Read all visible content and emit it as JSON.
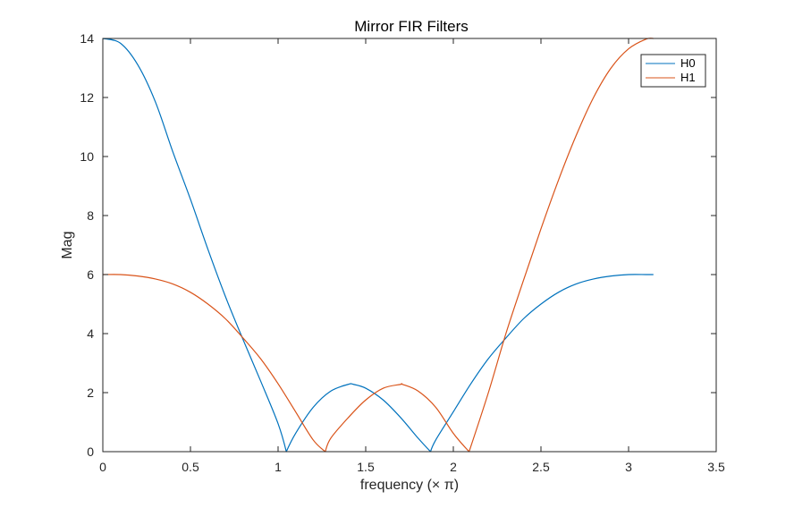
{
  "chart_data": {
    "type": "line",
    "title": "Mirror FIR Filters",
    "xlabel": "frequency (× π)",
    "ylabel": "Mag",
    "xlim": [
      0,
      3.5
    ],
    "ylim": [
      0,
      14
    ],
    "x_ticks": [
      "0",
      "0.5",
      "1",
      "1.5",
      "2",
      "2.5",
      "3",
      "3.5"
    ],
    "y_ticks": [
      "0",
      "2",
      "4",
      "6",
      "8",
      "10",
      "12",
      "14"
    ],
    "grid": false,
    "box": true,
    "legend_position": "top-right",
    "series": [
      {
        "name": "H0",
        "color": "#0072BD",
        "x": [
          0,
          0.1,
          0.2,
          0.3,
          0.4,
          0.5,
          0.6,
          0.7,
          0.8,
          0.9,
          1.0,
          1.047,
          1.1,
          1.2,
          1.3,
          1.4,
          1.43,
          1.5,
          1.6,
          1.7,
          1.8,
          1.87,
          1.9,
          2.0,
          2.1,
          2.2,
          2.3,
          2.4,
          2.5,
          2.6,
          2.7,
          2.8,
          2.9,
          3.0,
          3.1,
          3.1416
        ],
        "y": [
          14.0,
          13.84,
          13.1,
          11.85,
          10.15,
          8.55,
          6.85,
          5.25,
          3.8,
          2.4,
          0.95,
          0.0,
          0.62,
          1.5,
          2.05,
          2.28,
          2.28,
          2.15,
          1.75,
          1.15,
          0.45,
          0.0,
          0.4,
          1.35,
          2.3,
          3.15,
          3.85,
          4.5,
          5.0,
          5.4,
          5.68,
          5.85,
          5.95,
          6.0,
          6.0,
          6.0
        ]
      },
      {
        "name": "H1",
        "color": "#D95319",
        "x": [
          0,
          0.1,
          0.2,
          0.3,
          0.4,
          0.5,
          0.6,
          0.7,
          0.8,
          0.9,
          1.0,
          1.1,
          1.2,
          1.27,
          1.3,
          1.4,
          1.5,
          1.6,
          1.7,
          1.71,
          1.8,
          1.9,
          2.0,
          2.09,
          2.2,
          2.3,
          2.4,
          2.5,
          2.6,
          2.7,
          2.8,
          2.9,
          3.0,
          3.1,
          3.1416
        ],
        "y": [
          6.0,
          6.0,
          5.95,
          5.85,
          5.68,
          5.4,
          5.0,
          4.5,
          3.85,
          3.15,
          2.3,
          1.35,
          0.4,
          0.0,
          0.45,
          1.15,
          1.75,
          2.15,
          2.28,
          2.28,
          2.05,
          1.5,
          0.62,
          0.0,
          2.0,
          4.0,
          5.8,
          7.55,
          9.2,
          10.7,
          12.0,
          13.0,
          13.65,
          13.98,
          14.0
        ]
      }
    ]
  }
}
